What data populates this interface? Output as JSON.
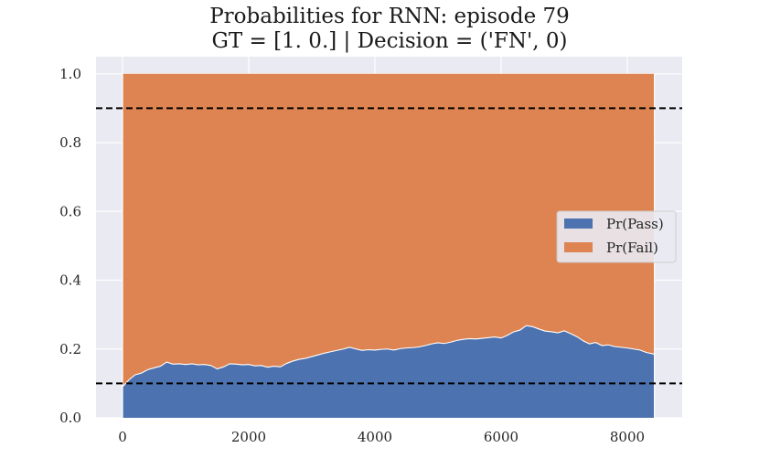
{
  "chart_data": {
    "type": "area",
    "title": "Probabilities for RNN: episode 79",
    "subtitle": "GT = [1. 0.] | Decision = ('FN', 0)",
    "xlabel": "",
    "ylabel": "",
    "xlim": [
      -420,
      8870
    ],
    "ylim": [
      0,
      1.05
    ],
    "xticks": [
      "0",
      "2000",
      "4000",
      "6000",
      "8000"
    ],
    "yticks": [
      "0.0",
      "0.2",
      "0.4",
      "0.6",
      "0.8",
      "1.0"
    ],
    "grid": true,
    "legend_position": "center-right",
    "thresholds": [
      0.9,
      0.1
    ],
    "threshold_style": "dashed black",
    "stacked": true,
    "total": 1.0,
    "series": [
      {
        "name": "Pr(Pass)",
        "color": "#4c72b0",
        "x": [
          0,
          100,
          200,
          300,
          400,
          500,
          600,
          700,
          800,
          900,
          1000,
          1100,
          1200,
          1300,
          1400,
          1500,
          1600,
          1700,
          1800,
          1900,
          2000,
          2100,
          2200,
          2300,
          2400,
          2500,
          2600,
          2700,
          2800,
          2900,
          3000,
          3100,
          3200,
          3300,
          3400,
          3500,
          3600,
          3700,
          3800,
          3900,
          4000,
          4100,
          4200,
          4300,
          4400,
          4500,
          4600,
          4700,
          4800,
          4900,
          5000,
          5100,
          5200,
          5300,
          5400,
          5500,
          5600,
          5700,
          5800,
          5900,
          6000,
          6100,
          6200,
          6300,
          6400,
          6500,
          6600,
          6700,
          6800,
          6900,
          7000,
          7100,
          7200,
          7300,
          7400,
          7500,
          7600,
          7700,
          7800,
          7900,
          8000,
          8100,
          8200,
          8300,
          8430
        ],
        "values": [
          0.09,
          0.11,
          0.125,
          0.13,
          0.14,
          0.145,
          0.15,
          0.162,
          0.156,
          0.157,
          0.155,
          0.157,
          0.154,
          0.155,
          0.152,
          0.142,
          0.148,
          0.157,
          0.156,
          0.154,
          0.155,
          0.151,
          0.152,
          0.147,
          0.15,
          0.148,
          0.158,
          0.165,
          0.17,
          0.173,
          0.178,
          0.183,
          0.188,
          0.192,
          0.196,
          0.2,
          0.205,
          0.2,
          0.196,
          0.198,
          0.197,
          0.199,
          0.2,
          0.197,
          0.201,
          0.203,
          0.204,
          0.206,
          0.21,
          0.215,
          0.218,
          0.216,
          0.22,
          0.225,
          0.228,
          0.23,
          0.229,
          0.231,
          0.233,
          0.235,
          0.232,
          0.24,
          0.25,
          0.255,
          0.268,
          0.265,
          0.258,
          0.252,
          0.25,
          0.247,
          0.253,
          0.245,
          0.236,
          0.224,
          0.215,
          0.219,
          0.21,
          0.212,
          0.207,
          0.205,
          0.203,
          0.2,
          0.197,
          0.19,
          0.185
        ]
      },
      {
        "name": "Pr(Fail)",
        "color": "#dd8452",
        "values_rule": "1 - Pr(Pass)"
      }
    ]
  }
}
